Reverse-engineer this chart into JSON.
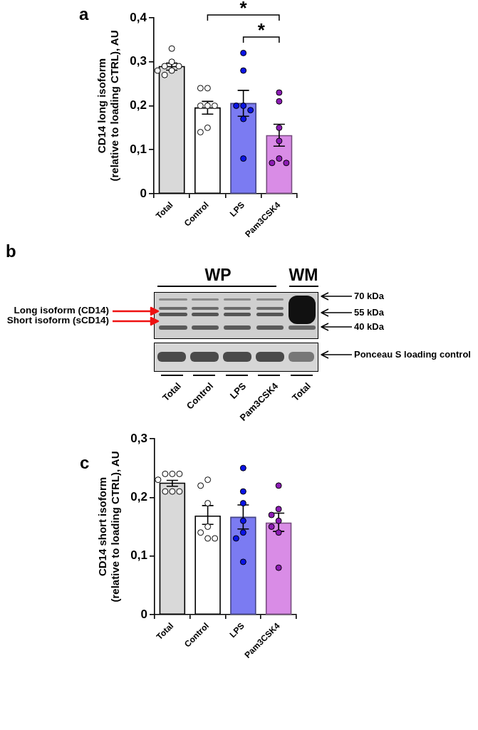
{
  "chart_data": [
    {
      "type": "bar",
      "title": "a",
      "ylabel": "CD14 long isoform (relative to loading CTRL), AU",
      "categories": [
        "Total",
        "Control",
        "LPS",
        "Pam3CSK4"
      ],
      "ylim": [
        0,
        0.4
      ],
      "yticks": [
        0,
        {
          "value": 0.1,
          "label": "0,1"
        },
        {
          "value": 0.2,
          "label": "0,2"
        },
        {
          "value": 0.3,
          "label": "0,3"
        },
        {
          "value": 0.4,
          "label": "0,4"
        }
      ],
      "grid": false,
      "legend": false,
      "marker": "circle",
      "annotations": [
        "*",
        "*"
      ],
      "series": [
        {
          "type": "bar",
          "values": [
            0.289,
            0.195,
            0.205,
            0.132
          ],
          "colors": [
            "#d9d9d9",
            "#ffffff",
            "#7b7bf2",
            "#d98ce6"
          ],
          "errors": [
            [
              0.281,
              0.297
            ],
            [
              0.181,
              0.21
            ],
            [
              0.176,
              0.235
            ],
            [
              0.108,
              0.158
            ]
          ]
        },
        {
          "type": "scatter",
          "x": [
            "Total",
            "Total",
            "Total",
            "Total",
            "Total",
            "Total",
            "Total",
            "Control",
            "Control",
            "Control",
            "Control",
            "Control",
            "Control",
            "Control",
            "LPS",
            "LPS",
            "LPS",
            "LPS",
            "LPS",
            "LPS",
            "LPS",
            "Pam3CSK4",
            "Pam3CSK4",
            "Pam3CSK4",
            "Pam3CSK4",
            "Pam3CSK4",
            "Pam3CSK4",
            "Pam3CSK4"
          ],
          "values": [
            0.33,
            0.3,
            0.29,
            0.29,
            0.28,
            0.28,
            0.27,
            0.24,
            0.24,
            0.2,
            0.2,
            0.2,
            0.15,
            0.14,
            0.32,
            0.28,
            0.2,
            0.2,
            0.19,
            0.17,
            0.08,
            0.23,
            0.21,
            0.15,
            0.12,
            0.08,
            0.07,
            0.07
          ],
          "colors": [
            "#ffffff",
            "#ffffff",
            "#ffffff",
            "#ffffff",
            "#ffffff",
            "#ffffff",
            "#ffffff",
            "#ffffff",
            "#ffffff",
            "#ffffff",
            "#ffffff",
            "#ffffff",
            "#ffffff",
            "#ffffff",
            "#0a14e6",
            "#0a14e6",
            "#0a14e6",
            "#0a14e6",
            "#0a14e6",
            "#0a14e6",
            "#0a14e6",
            "#8c1cb4",
            "#8c1cb4",
            "#8c1cb4",
            "#8c1cb4",
            "#8c1cb4",
            "#8c1cb4",
            "#8c1cb4"
          ]
        }
      ]
    },
    {
      "type": "other",
      "title": "b",
      "annotations": [
        "WP",
        "WM",
        "Long isoform (CD14)",
        "Short isoform (sCD14)",
        "70 kDa",
        "55 kDa",
        "40 kDa",
        "Ponceau S loading control",
        "Total",
        "Control",
        "LPS",
        "Pam3CSK4",
        "Total"
      ]
    },
    {
      "type": "bar",
      "title": "c",
      "ylabel": "CD14 short isoform (relative to loading CTRL), AU",
      "categories": [
        "Total",
        "Control",
        "LPS",
        "Pam3CSK4"
      ],
      "ylim": [
        0,
        0.3
      ],
      "yticks": [
        0,
        {
          "value": 0.1,
          "label": "0,1"
        },
        {
          "value": 0.2,
          "label": "0,2"
        },
        {
          "value": 0.3,
          "label": "0,3"
        }
      ],
      "grid": false,
      "legend": false,
      "marker": "circle",
      "series": [
        {
          "type": "bar",
          "values": [
            0.224,
            0.168,
            0.166,
            0.156
          ],
          "colors": [
            "#d9d9d9",
            "#ffffff",
            "#7b7bf2",
            "#d98ce6"
          ],
          "errors": [
            [
              0.219,
              0.229
            ],
            [
              0.154,
              0.186
            ],
            [
              0.146,
              0.187
            ],
            [
              0.142,
              0.173
            ]
          ]
        },
        {
          "type": "scatter",
          "x": [
            "Total",
            "Total",
            "Total",
            "Total",
            "Total",
            "Total",
            "Total",
            "Control",
            "Control",
            "Control",
            "Control",
            "Control",
            "Control",
            "Control",
            "LPS",
            "LPS",
            "LPS",
            "LPS",
            "LPS",
            "LPS",
            "LPS",
            "Pam3CSK4",
            "Pam3CSK4",
            "Pam3CSK4",
            "Pam3CSK4",
            "Pam3CSK4",
            "Pam3CSK4",
            "Pam3CSK4"
          ],
          "values": [
            0.24,
            0.24,
            0.24,
            0.23,
            0.21,
            0.21,
            0.21,
            0.23,
            0.22,
            0.19,
            0.15,
            0.14,
            0.13,
            0.13,
            0.25,
            0.21,
            0.19,
            0.16,
            0.14,
            0.13,
            0.09,
            0.22,
            0.18,
            0.17,
            0.16,
            0.15,
            0.14,
            0.08
          ],
          "colors": [
            "#ffffff",
            "#ffffff",
            "#ffffff",
            "#ffffff",
            "#ffffff",
            "#ffffff",
            "#ffffff",
            "#ffffff",
            "#ffffff",
            "#ffffff",
            "#ffffff",
            "#ffffff",
            "#ffffff",
            "#ffffff",
            "#0a14e6",
            "#0a14e6",
            "#0a14e6",
            "#0a14e6",
            "#0a14e6",
            "#0a14e6",
            "#0a14e6",
            "#8c1cb4",
            "#8c1cb4",
            "#8c1cb4",
            "#8c1cb4",
            "#8c1cb4",
            "#8c1cb4",
            "#8c1cb4"
          ]
        }
      ]
    }
  ]
}
